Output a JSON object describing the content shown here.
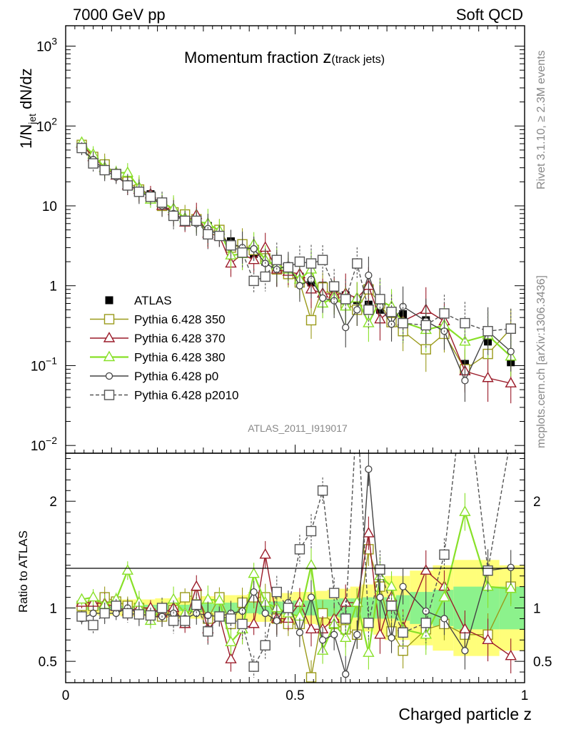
{
  "header": {
    "left": "7000 GeV pp",
    "right": "Soft QCD"
  },
  "side": {
    "rivet": "Rivet 3.1.10, ≥ 2.3M events",
    "mcplots": "mcplots.cern.ch [arXiv:1306.3436]"
  },
  "analysis_id": "ATLAS_2011_I919017",
  "main_ylabel": {
    "base": "1/N",
    "sub": "jet",
    "tail": " dN/dz"
  },
  "ratio_ylabel": "Ratio to ATLAS",
  "xlabel": "Charged particle z",
  "title": {
    "main": "Momentum fraction ",
    "z": "z",
    "paren": "(track jets)"
  },
  "legend": [
    {
      "label": "ATLAS",
      "color": "#000000",
      "marker": "square-filled",
      "dashed": false
    },
    {
      "label": "Pythia 6.428 350",
      "color": "#9a9a1a",
      "marker": "square-open",
      "dashed": false
    },
    {
      "label": "Pythia 6.428 370",
      "color": "#9b1c2a",
      "marker": "triangle-open",
      "dashed": false
    },
    {
      "label": "Pythia 6.428 380",
      "color": "#88e028",
      "marker": "triangle-open",
      "dashed": false
    },
    {
      "label": "Pythia 6.428 p0",
      "color": "#444444",
      "marker": "circle-open",
      "dashed": false
    },
    {
      "label": "Pythia 6.428 p2010",
      "color": "#555555",
      "marker": "square-open",
      "dashed": true
    }
  ],
  "chart_data": [
    {
      "type": "line",
      "panel": "main",
      "yscale": "log",
      "xlim": [
        0,
        1
      ],
      "ylim": [
        0.008,
        1800
      ],
      "x_ticks": [
        0,
        0.5,
        1
      ],
      "y_tick_labels": [
        "10^-2",
        "10^-1",
        "1",
        "10",
        "10^2",
        "10^3"
      ],
      "x": [
        0.035,
        0.06,
        0.085,
        0.11,
        0.135,
        0.16,
        0.185,
        0.21,
        0.235,
        0.26,
        0.285,
        0.31,
        0.335,
        0.36,
        0.385,
        0.41,
        0.435,
        0.46,
        0.485,
        0.51,
        0.535,
        0.56,
        0.585,
        0.61,
        0.635,
        0.66,
        0.685,
        0.71,
        0.735,
        0.785,
        0.825,
        0.87,
        0.92,
        0.97
      ],
      "series": [
        {
          "name": "ATLAS",
          "values": [
            57,
            40,
            29,
            24,
            19,
            16,
            14,
            11,
            8.5,
            7.4,
            6.4,
            5.6,
            4.6,
            3.6,
            3.1,
            2.5,
            2.0,
            1.8,
            1.7,
            1.3,
            1.1,
            1.0,
            0.86,
            0.76,
            0.66,
            0.58,
            0.5,
            0.46,
            0.44,
            0.37,
            0.3,
            0.105,
            0.2,
            0.11
          ]
        },
        {
          "name": "Pythia 6.428 350",
          "values": [
            58,
            41,
            33,
            25,
            20,
            16,
            13,
            10,
            8.3,
            7.8,
            6.8,
            4.7,
            5.0,
            3.0,
            3.3,
            2.8,
            2.2,
            1.6,
            1.4,
            1.1,
            0.37,
            0.95,
            0.72,
            0.6,
            0.5,
            0.9,
            0.6,
            0.35,
            0.27,
            0.16,
            0.25,
            0.09,
            0.14,
            0.29
          ]
        },
        {
          "name": "Pythia 6.428 370",
          "values": [
            60,
            41,
            30,
            24,
            18,
            16,
            14,
            10,
            8.6,
            6.2,
            7.7,
            4.5,
            4.2,
            1.9,
            2.5,
            2.1,
            3.0,
            1.6,
            1.5,
            1.4,
            0.9,
            0.8,
            0.78,
            0.8,
            0.7,
            1.0,
            0.38,
            0.5,
            0.36,
            0.5,
            0.36,
            0.085,
            0.07,
            0.06
          ]
        },
        {
          "name": "Pythia 6.428 380",
          "values": [
            62,
            44,
            30,
            26,
            26,
            17,
            12,
            11,
            9.2,
            7.0,
            6.4,
            6.0,
            4.9,
            2.4,
            2.5,
            3.3,
            2.1,
            1.8,
            1.6,
            1.2,
            1.6,
            0.6,
            0.72,
            0.55,
            0.7,
            0.34,
            0.65,
            0.55,
            0.35,
            0.28,
            0.32,
            0.2,
            0.24,
            0.13
          ]
        },
        {
          "name": "Pythia 6.428 p0",
          "values": [
            51,
            38,
            28,
            23,
            19,
            15,
            13,
            10,
            8.0,
            6.6,
            6.0,
            5.2,
            4.2,
            3.4,
            3.0,
            2.9,
            1.9,
            1.6,
            1.8,
            1.0,
            1.2,
            0.7,
            0.65,
            0.3,
            0.5,
            1.35,
            0.55,
            0.33,
            0.55,
            0.36,
            0.27,
            0.065,
            0.27,
            0.15
          ]
        },
        {
          "name": "Pythia 6.428 p2010",
          "values": [
            53,
            34,
            28,
            25,
            18,
            15,
            13,
            11,
            7.5,
            6.5,
            6.5,
            4.4,
            4.2,
            3.2,
            2.6,
            1.15,
            1.3,
            2.1,
            1.7,
            2.0,
            1.9,
            2.1,
            0.98,
            0.68,
            1.9,
            0.5,
            0.68,
            0.47,
            0.34,
            0.32,
            0.45,
            0.34,
            0.27,
            0.29
          ]
        }
      ]
    },
    {
      "type": "line",
      "panel": "ratio",
      "xlim": [
        0,
        1
      ],
      "ylim": [
        0.3,
        2.45
      ],
      "y_ticks": [
        0.5,
        1,
        2
      ],
      "x": [
        0.035,
        0.06,
        0.085,
        0.11,
        0.135,
        0.16,
        0.185,
        0.21,
        0.235,
        0.26,
        0.285,
        0.31,
        0.335,
        0.36,
        0.385,
        0.41,
        0.435,
        0.46,
        0.485,
        0.51,
        0.535,
        0.56,
        0.585,
        0.61,
        0.635,
        0.66,
        0.685,
        0.71,
        0.735,
        0.785,
        0.825,
        0.87,
        0.92,
        0.97
      ],
      "series": [
        {
          "name": "Pythia 6.428 350",
          "values": [
            1.02,
            1.02,
            1.1,
            1.06,
            1.02,
            1.0,
            0.95,
            0.92,
            0.98,
            1.1,
            1.12,
            0.9,
            1.1,
            0.85,
            1.05,
            1.1,
            1.1,
            0.9,
            0.85,
            0.85,
            0.35,
            0.95,
            0.85,
            0.8,
            0.75,
            1.55,
            1.2,
            0.78,
            0.6,
            0.8,
            0.85,
            0.75,
            0.75,
            1.2
          ]
        },
        {
          "name": "Pythia 6.428 370",
          "values": [
            1.05,
            1.05,
            1.04,
            1.01,
            0.97,
            1.0,
            1.0,
            0.95,
            1.0,
            0.85,
            1.2,
            0.8,
            0.92,
            0.52,
            0.8,
            0.85,
            1.5,
            0.9,
            0.9,
            1.05,
            0.8,
            0.8,
            0.9,
            1.05,
            1.05,
            1.7,
            0.75,
            1.1,
            0.82,
            1.35,
            1.2,
            0.8,
            0.7,
            0.55
          ]
        },
        {
          "name": "Pythia 6.428 380",
          "values": [
            1.08,
            1.1,
            1.03,
            1.08,
            1.35,
            1.05,
            0.88,
            1.0,
            1.08,
            0.95,
            1.0,
            1.08,
            1.07,
            0.68,
            0.8,
            1.32,
            1.05,
            1.0,
            0.95,
            0.92,
            1.4,
            0.6,
            0.85,
            0.72,
            1.05,
            0.58,
            1.3,
            1.2,
            0.8,
            0.75,
            1.1,
            1.9,
            1.2,
            1.18
          ]
        },
        {
          "name": "Pythia 6.428 p0",
          "values": [
            0.9,
            0.95,
            0.95,
            0.95,
            1.0,
            0.95,
            0.92,
            0.92,
            0.95,
            0.9,
            0.95,
            0.93,
            0.92,
            0.95,
            0.97,
            1.15,
            0.95,
            0.88,
            1.05,
            0.77,
            1.1,
            0.7,
            0.75,
            0.38,
            0.75,
            2.3,
            1.1,
            0.72,
            1.2,
            0.97,
            0.9,
            0.6,
            1.35,
            1.38
          ]
        },
        {
          "name": "Pythia 6.428 p2010",
          "values": [
            0.92,
            0.84,
            0.95,
            1.02,
            0.95,
            0.94,
            0.93,
            1.0,
            0.88,
            0.88,
            1.03,
            0.78,
            0.92,
            0.9,
            0.85,
            0.45,
            0.65,
            1.15,
            1.0,
            1.55,
            1.72,
            2.1,
            1.14,
            0.9,
            2.9,
            0.86,
            1.36,
            1.02,
            0.77,
            0.86,
            1.5,
            3.2,
            1.35,
            2.6
          ]
        }
      ],
      "uncertainty_band": {
        "x_edges": [
          0.025,
          0.045,
          0.07,
          0.095,
          0.12,
          0.145,
          0.17,
          0.195,
          0.22,
          0.245,
          0.27,
          0.295,
          0.32,
          0.345,
          0.37,
          0.395,
          0.42,
          0.445,
          0.47,
          0.495,
          0.52,
          0.545,
          0.57,
          0.595,
          0.62,
          0.645,
          0.67,
          0.695,
          0.72,
          0.75,
          0.8,
          0.845,
          0.895,
          0.945,
          1.0
        ],
        "stat_half_width": [
          0.02,
          0.02,
          0.02,
          0.02,
          0.02,
          0.02,
          0.03,
          0.03,
          0.03,
          0.03,
          0.04,
          0.04,
          0.04,
          0.05,
          0.05,
          0.05,
          0.06,
          0.06,
          0.06,
          0.07,
          0.07,
          0.08,
          0.08,
          0.09,
          0.09,
          0.1,
          0.1,
          0.1,
          0.12,
          0.15,
          0.17,
          0.2,
          0.2,
          0.2
        ],
        "total_half_width": [
          0.06,
          0.06,
          0.07,
          0.07,
          0.08,
          0.08,
          0.08,
          0.09,
          0.09,
          0.1,
          0.1,
          0.11,
          0.11,
          0.12,
          0.12,
          0.13,
          0.13,
          0.14,
          0.14,
          0.15,
          0.15,
          0.16,
          0.17,
          0.18,
          0.2,
          0.22,
          0.25,
          0.3,
          0.3,
          0.35,
          0.4,
          0.45,
          0.45,
          0.4
        ]
      }
    }
  ]
}
